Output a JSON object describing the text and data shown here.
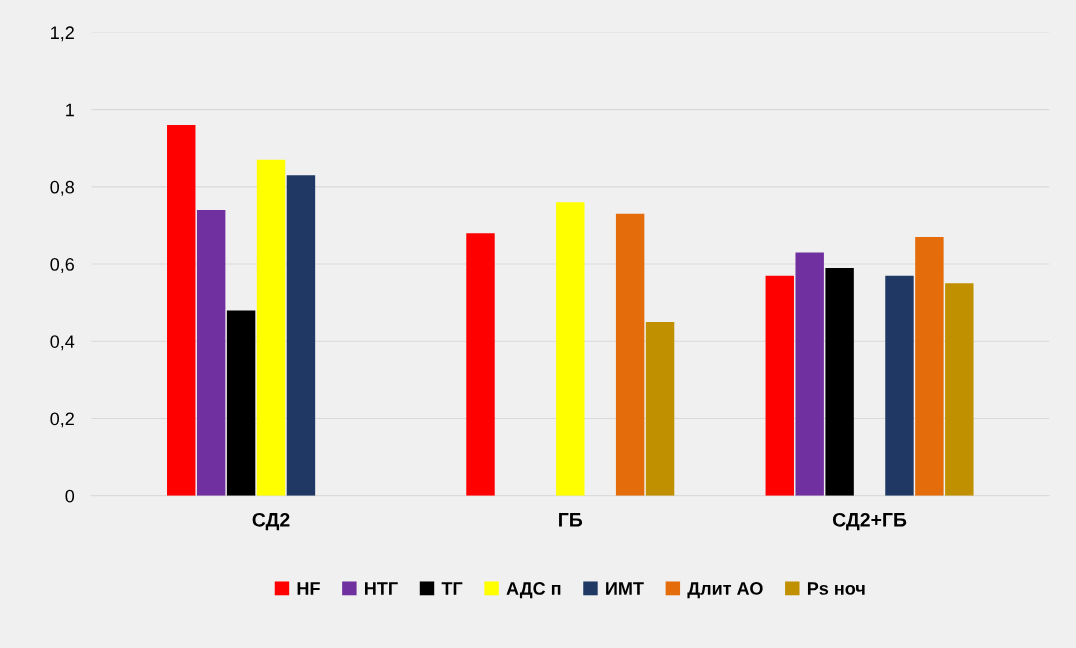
{
  "chart_data": {
    "type": "bar",
    "categories": [
      "СД2",
      "ГБ",
      "СД2+ГБ"
    ],
    "series": [
      {
        "name": "HF",
        "color": "#ff0000",
        "values": [
          0.96,
          0.68,
          0.57
        ]
      },
      {
        "name": "НТГ",
        "color": "#7030a0",
        "values": [
          0.74,
          null,
          0.63
        ]
      },
      {
        "name": "ТГ",
        "color": "#000000",
        "values": [
          0.48,
          null,
          0.59
        ]
      },
      {
        "name": "АДС п",
        "color": "#ffff00",
        "values": [
          0.87,
          0.76,
          null
        ]
      },
      {
        "name": "ИМТ",
        "color": "#1f3864",
        "values": [
          0.83,
          null,
          0.57
        ]
      },
      {
        "name": "Длит АО",
        "color": "#e46c0a",
        "values": [
          null,
          0.73,
          0.67
        ]
      },
      {
        "name": "Ps ноч",
        "color": "#c09000",
        "values": [
          null,
          0.45,
          0.55
        ]
      }
    ],
    "ylim": [
      0,
      1.2
    ],
    "yticks": [
      {
        "value": 0,
        "label": "0"
      },
      {
        "value": 0.2,
        "label": "0,2"
      },
      {
        "value": 0.4,
        "label": "0,4"
      },
      {
        "value": 0.6,
        "label": "0,6"
      },
      {
        "value": 0.8,
        "label": "0,8"
      },
      {
        "value": 1,
        "label": "1"
      },
      {
        "value": 1.2,
        "label": "1,2"
      }
    ],
    "grid": "y",
    "legend": "bottom"
  }
}
